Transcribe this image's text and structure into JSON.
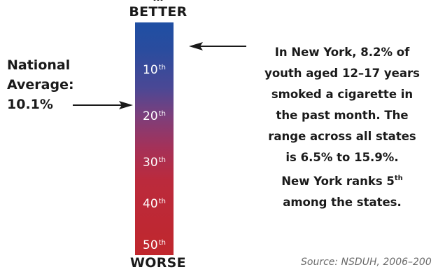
{
  "top_partial_label": "…",
  "scale": {
    "top_label": "BETTER",
    "bottom_label": "WORSE",
    "colors": {
      "top": "#1f4fa3",
      "middle": "#7c3f7c",
      "bottom": "#c0272d"
    },
    "ticks": [
      {
        "number": "10",
        "suffix": "th"
      },
      {
        "number": "20",
        "suffix": "th"
      },
      {
        "number": "30",
        "suffix": "th"
      },
      {
        "number": "40",
        "suffix": "th"
      },
      {
        "number": "50",
        "suffix": "th"
      }
    ]
  },
  "national": {
    "line1": "National",
    "line2": "Average:",
    "value": "10.1%"
  },
  "new_york": {
    "lines": [
      "In New York, 8.2% of",
      "youth aged 12–17 years",
      "smoked a cigarette in",
      "the past month. The",
      "range across all states",
      "is 6.5% to 15.9%."
    ],
    "rank_prefix": "New York ranks 5",
    "rank_suffix": "th",
    "rank_tail": "among the states."
  },
  "source": "Source: NSDUH, 2006–200"
}
